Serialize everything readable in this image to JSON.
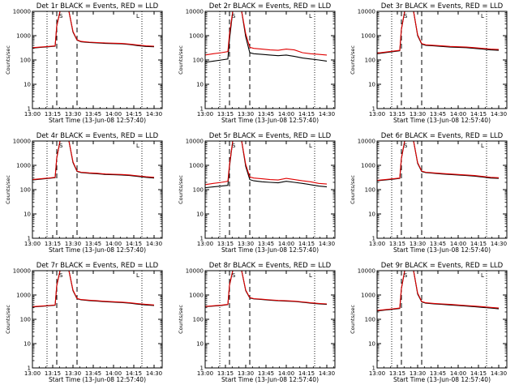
{
  "colors": {
    "events": "#000000",
    "lld": "#e00000",
    "axes": "#000000",
    "background": "#ffffff"
  },
  "chart_data": [
    {
      "type": "line",
      "title": "Det 1r BLACK = Events, RED = LLD",
      "xlabel": "Start Time (13-Jun-08 12:57:40)",
      "ylabel": "Counts/sec",
      "yscale": "log",
      "ylim": [
        1,
        10000
      ],
      "ytick_labels": [
        "1",
        "10",
        "100",
        "1000",
        "10000"
      ],
      "xlim": [
        13.0,
        14.6
      ],
      "xtick_labels": [
        "13:00",
        "13:15",
        "13:30",
        "13:45",
        "14:00",
        "14:15",
        "14:30"
      ],
      "dotted_lines": [
        13.18,
        14.35
      ],
      "dashed_lines": [
        13.3,
        13.55
      ],
      "annotations": [
        "S",
        "L"
      ],
      "x": [
        13.0,
        13.1,
        13.2,
        13.28,
        13.3,
        13.34,
        13.38,
        13.42,
        13.45,
        13.5,
        13.55,
        13.6,
        13.7,
        13.8,
        13.9,
        14.0,
        14.1,
        14.2,
        14.3,
        14.4,
        14.5
      ],
      "series": [
        {
          "name": "Events",
          "values": [
            310,
            330,
            350,
            370,
            2500,
            10000,
            10000,
            10000,
            10000,
            1400,
            650,
            560,
            520,
            500,
            480,
            470,
            460,
            430,
            390,
            360,
            350
          ]
        },
        {
          "name": "LLD",
          "values": [
            320,
            340,
            360,
            380,
            2600,
            10000,
            10000,
            10000,
            10000,
            1500,
            670,
            580,
            540,
            520,
            500,
            490,
            480,
            450,
            410,
            380,
            370
          ]
        }
      ]
    },
    {
      "type": "line",
      "title": "Det 2r BLACK = Events, RED = LLD",
      "xlabel": "Start Time (13-Jun-08 12:57:40)",
      "ylabel": "Counts/sec",
      "yscale": "log",
      "ylim": [
        1,
        10000
      ],
      "ytick_labels": [
        "1",
        "10",
        "100",
        "1000",
        "10000"
      ],
      "xlim": [
        13.0,
        14.6
      ],
      "xtick_labels": [
        "13:00",
        "13:15",
        "13:30",
        "13:45",
        "14:00",
        "14:15",
        "14:30"
      ],
      "dotted_lines": [
        13.18,
        14.35
      ],
      "dashed_lines": [
        13.3,
        13.55
      ],
      "annotations": [
        "S",
        "L"
      ],
      "x": [
        13.0,
        13.1,
        13.2,
        13.28,
        13.3,
        13.34,
        13.38,
        13.42,
        13.45,
        13.5,
        13.55,
        13.6,
        13.7,
        13.8,
        13.9,
        14.0,
        14.1,
        14.2,
        14.3,
        14.4,
        14.5
      ],
      "series": [
        {
          "name": "Events",
          "values": [
            80,
            90,
            100,
            110,
            700,
            10000,
            10000,
            10000,
            10000,
            900,
            200,
            180,
            170,
            160,
            150,
            160,
            140,
            120,
            110,
            100,
            90
          ]
        },
        {
          "name": "LLD",
          "values": [
            160,
            180,
            200,
            220,
            1200,
            10000,
            10000,
            10000,
            10000,
            1200,
            330,
            300,
            280,
            260,
            250,
            280,
            260,
            200,
            180,
            170,
            160
          ]
        }
      ]
    },
    {
      "type": "line",
      "title": "Det 3r BLACK = Events, RED = LLD",
      "xlabel": "Start Time (13-Jun-08 12:57:40)",
      "ylabel": "Counts/sec",
      "yscale": "log",
      "ylim": [
        1,
        10000
      ],
      "ytick_labels": [
        "1",
        "10",
        "100",
        "1000",
        "10000"
      ],
      "xlim": [
        13.0,
        14.6
      ],
      "xtick_labels": [
        "13:00",
        "13:15",
        "13:30",
        "13:45",
        "14:00",
        "14:15",
        "14:30"
      ],
      "dotted_lines": [
        13.18,
        14.35
      ],
      "dashed_lines": [
        13.3,
        13.55
      ],
      "annotations": [
        "S",
        "L"
      ],
      "x": [
        13.0,
        13.1,
        13.2,
        13.28,
        13.3,
        13.34,
        13.38,
        13.42,
        13.45,
        13.5,
        13.55,
        13.6,
        13.7,
        13.8,
        13.9,
        14.0,
        14.1,
        14.2,
        14.3,
        14.4,
        14.5
      ],
      "series": [
        {
          "name": "Events",
          "values": [
            180,
            200,
            220,
            240,
            1800,
            10000,
            10000,
            10000,
            10000,
            1000,
            450,
            400,
            380,
            360,
            340,
            330,
            320,
            300,
            280,
            260,
            250
          ]
        },
        {
          "name": "LLD",
          "values": [
            190,
            210,
            230,
            250,
            1900,
            10000,
            10000,
            10000,
            10000,
            1100,
            470,
            420,
            400,
            380,
            360,
            350,
            340,
            320,
            300,
            280,
            270
          ]
        }
      ]
    },
    {
      "type": "line",
      "title": "Det 4r BLACK = Events, RED = LLD",
      "xlabel": "Start Time (13-Jun-08 12:57:40)",
      "ylabel": "Counts/sec",
      "yscale": "log",
      "ylim": [
        1,
        10000
      ],
      "ytick_labels": [
        "1",
        "10",
        "100",
        "1000",
        "10000"
      ],
      "xlim": [
        13.0,
        14.6
      ],
      "xtick_labels": [
        "13:00",
        "13:15",
        "13:30",
        "13:45",
        "14:00",
        "14:15",
        "14:30"
      ],
      "dotted_lines": [
        13.18,
        14.35
      ],
      "dashed_lines": [
        13.3,
        13.55
      ],
      "annotations": [
        "S",
        "L"
      ],
      "x": [
        13.0,
        13.1,
        13.2,
        13.28,
        13.3,
        13.34,
        13.38,
        13.42,
        13.45,
        13.5,
        13.55,
        13.6,
        13.7,
        13.8,
        13.9,
        14.0,
        14.1,
        14.2,
        14.3,
        14.4,
        14.5
      ],
      "series": [
        {
          "name": "Events",
          "values": [
            250,
            270,
            290,
            310,
            2000,
            10000,
            10000,
            10000,
            10000,
            1300,
            560,
            500,
            470,
            450,
            420,
            410,
            400,
            380,
            350,
            320,
            300
          ]
        },
        {
          "name": "LLD",
          "values": [
            260,
            280,
            300,
            320,
            2100,
            10000,
            10000,
            10000,
            10000,
            1400,
            580,
            520,
            490,
            470,
            440,
            430,
            420,
            400,
            370,
            340,
            320
          ]
        }
      ]
    },
    {
      "type": "line",
      "title": "Det 5r BLACK = Events, RED = LLD",
      "xlabel": "Start Time (13-Jun-08 12:57:40)",
      "ylabel": "Counts/sec",
      "yscale": "log",
      "ylim": [
        1,
        10000
      ],
      "ytick_labels": [
        "1",
        "10",
        "100",
        "1000",
        "10000"
      ],
      "xlim": [
        13.0,
        14.6
      ],
      "xtick_labels": [
        "13:00",
        "13:15",
        "13:30",
        "13:45",
        "14:00",
        "14:15",
        "14:30"
      ],
      "dotted_lines": [
        13.18,
        14.35
      ],
      "dashed_lines": [
        13.3,
        13.55
      ],
      "annotations": [
        "S",
        "L"
      ],
      "x": [
        13.0,
        13.1,
        13.2,
        13.28,
        13.3,
        13.34,
        13.38,
        13.42,
        13.45,
        13.5,
        13.55,
        13.6,
        13.7,
        13.8,
        13.9,
        14.0,
        14.1,
        14.2,
        14.3,
        14.4,
        14.5
      ],
      "series": [
        {
          "name": "Events",
          "values": [
            120,
            130,
            140,
            150,
            900,
            10000,
            10000,
            10000,
            10000,
            900,
            260,
            230,
            210,
            200,
            190,
            220,
            200,
            180,
            160,
            140,
            130
          ]
        },
        {
          "name": "LLD",
          "values": [
            160,
            180,
            200,
            220,
            1100,
            10000,
            10000,
            10000,
            10000,
            1100,
            330,
            300,
            280,
            260,
            250,
            290,
            260,
            230,
            210,
            180,
            170
          ]
        }
      ]
    },
    {
      "type": "line",
      "title": "Det 6r BLACK = Events, RED = LLD",
      "xlabel": "Start Time (13-Jun-08 12:57:40)",
      "ylabel": "Counts/sec",
      "yscale": "log",
      "ylim": [
        1,
        10000
      ],
      "ytick_labels": [
        "1",
        "10",
        "100",
        "1000",
        "10000"
      ],
      "xlim": [
        13.0,
        14.6
      ],
      "xtick_labels": [
        "13:00",
        "13:15",
        "13:30",
        "13:45",
        "14:00",
        "14:15",
        "14:30"
      ],
      "dotted_lines": [
        13.18,
        14.35
      ],
      "dashed_lines": [
        13.3,
        13.55
      ],
      "annotations": [
        "S",
        "L"
      ],
      "x": [
        13.0,
        13.1,
        13.2,
        13.28,
        13.3,
        13.34,
        13.38,
        13.42,
        13.45,
        13.5,
        13.55,
        13.6,
        13.7,
        13.8,
        13.9,
        14.0,
        14.1,
        14.2,
        14.3,
        14.4,
        14.5
      ],
      "series": [
        {
          "name": "Events",
          "values": [
            230,
            250,
            270,
            290,
            1900,
            10000,
            10000,
            10000,
            10000,
            1200,
            560,
            500,
            470,
            440,
            420,
            400,
            380,
            360,
            330,
            300,
            290
          ]
        },
        {
          "name": "LLD",
          "values": [
            240,
            260,
            280,
            300,
            2000,
            10000,
            10000,
            10000,
            10000,
            1300,
            580,
            520,
            490,
            460,
            440,
            420,
            400,
            380,
            350,
            320,
            310
          ]
        }
      ]
    },
    {
      "type": "line",
      "title": "Det 7r BLACK = Events, RED = LLD",
      "xlabel": "Start Time (13-Jun-08 12:57:40)",
      "ylabel": "Counts/sec",
      "yscale": "log",
      "ylim": [
        1,
        10000
      ],
      "ytick_labels": [
        "1",
        "10",
        "100",
        "1000",
        "10000"
      ],
      "xlim": [
        13.0,
        14.6
      ],
      "xtick_labels": [
        "13:00",
        "13:15",
        "13:30",
        "13:45",
        "14:00",
        "14:15",
        "14:30"
      ],
      "dotted_lines": [
        13.18,
        14.35
      ],
      "dashed_lines": [
        13.3,
        13.55
      ],
      "annotations": [
        "S",
        "L"
      ],
      "x": [
        13.0,
        13.1,
        13.2,
        13.28,
        13.3,
        13.34,
        13.38,
        13.42,
        13.45,
        13.5,
        13.55,
        13.6,
        13.7,
        13.8,
        13.9,
        14.0,
        14.1,
        14.2,
        14.3,
        14.4,
        14.5
      ],
      "series": [
        {
          "name": "Events",
          "values": [
            320,
            340,
            360,
            380,
            2400,
            10000,
            10000,
            10000,
            10000,
            1500,
            700,
            630,
            590,
            560,
            530,
            510,
            490,
            460,
            420,
            390,
            370
          ]
        },
        {
          "name": "LLD",
          "values": [
            330,
            350,
            370,
            390,
            2500,
            10000,
            10000,
            10000,
            10000,
            1600,
            720,
            650,
            610,
            580,
            550,
            530,
            510,
            480,
            440,
            410,
            390
          ]
        }
      ]
    },
    {
      "type": "line",
      "title": "Det 8r BLACK = Events, RED = LLD",
      "xlabel": "Start Time (13-Jun-08 12:57:40)",
      "ylabel": "Counts/sec",
      "yscale": "log",
      "ylim": [
        1,
        10000
      ],
      "ytick_labels": [
        "1",
        "10",
        "100",
        "1000",
        "10000"
      ],
      "xlim": [
        13.0,
        14.6
      ],
      "xtick_labels": [
        "13:00",
        "13:15",
        "13:30",
        "13:45",
        "14:00",
        "14:15",
        "14:30"
      ],
      "dotted_lines": [
        13.18,
        14.35
      ],
      "dashed_lines": [
        13.3,
        13.55
      ],
      "annotations": [
        "S",
        "L"
      ],
      "x": [
        13.0,
        13.1,
        13.2,
        13.28,
        13.3,
        13.34,
        13.38,
        13.42,
        13.45,
        13.5,
        13.55,
        13.6,
        13.7,
        13.8,
        13.9,
        14.0,
        14.1,
        14.2,
        14.3,
        14.4,
        14.5
      ],
      "series": [
        {
          "name": "Events",
          "values": [
            330,
            350,
            370,
            400,
            2500,
            10000,
            10000,
            10000,
            10000,
            1500,
            760,
            690,
            650,
            610,
            580,
            560,
            540,
            500,
            460,
            430,
            410
          ]
        },
        {
          "name": "LLD",
          "values": [
            340,
            360,
            380,
            410,
            2600,
            10000,
            10000,
            10000,
            10000,
            1600,
            780,
            710,
            670,
            630,
            600,
            580,
            560,
            520,
            480,
            450,
            430
          ]
        }
      ]
    },
    {
      "type": "line",
      "title": "Det 9r BLACK = Events, RED = LLD",
      "xlabel": "Start Time (13-Jun-08 12:57:40)",
      "ylabel": "Counts/sec",
      "yscale": "log",
      "ylim": [
        1,
        10000
      ],
      "ytick_labels": [
        "1",
        "10",
        "100",
        "1000",
        "10000"
      ],
      "xlim": [
        13.0,
        14.6
      ],
      "xtick_labels": [
        "13:00",
        "13:15",
        "13:30",
        "13:45",
        "14:00",
        "14:15",
        "14:30"
      ],
      "dotted_lines": [
        13.18,
        14.35
      ],
      "dashed_lines": [
        13.3,
        13.55
      ],
      "annotations": [
        "S",
        "L"
      ],
      "x": [
        13.0,
        13.1,
        13.2,
        13.28,
        13.3,
        13.34,
        13.38,
        13.42,
        13.45,
        13.5,
        13.55,
        13.6,
        13.7,
        13.8,
        13.9,
        14.0,
        14.1,
        14.2,
        14.3,
        14.4,
        14.5
      ],
      "series": [
        {
          "name": "Events",
          "values": [
            220,
            240,
            260,
            280,
            1800,
            10000,
            10000,
            10000,
            10000,
            1100,
            520,
            460,
            430,
            410,
            390,
            370,
            350,
            330,
            310,
            290,
            270
          ]
        },
        {
          "name": "LLD",
          "values": [
            230,
            250,
            270,
            290,
            1900,
            10000,
            10000,
            10000,
            10000,
            1200,
            540,
            480,
            450,
            430,
            410,
            390,
            370,
            350,
            330,
            310,
            290
          ]
        }
      ]
    }
  ]
}
